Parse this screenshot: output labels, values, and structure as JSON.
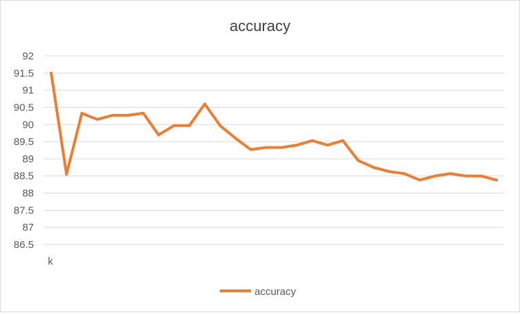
{
  "chart_data": {
    "type": "line",
    "title": "accuracy",
    "xlabel": "",
    "ylabel": "",
    "x_tick_label": "k",
    "ylim": [
      86.5,
      92
    ],
    "y_ticks": [
      "86.5",
      "87",
      "87.5",
      "88",
      "88.5",
      "89",
      "89.5",
      "90",
      "90.5",
      "91",
      "91.5",
      "92"
    ],
    "grid": true,
    "legend_position": "bottom",
    "series": [
      {
        "name": "accuracy",
        "color": "#ed7d31",
        "values": [
          91.5,
          88.55,
          90.33,
          90.15,
          90.27,
          90.27,
          90.33,
          89.7,
          89.97,
          89.97,
          90.6,
          89.97,
          89.6,
          89.27,
          89.33,
          89.33,
          89.4,
          89.53,
          89.4,
          89.53,
          88.95,
          88.75,
          88.63,
          88.57,
          88.38,
          88.5,
          88.57,
          88.5,
          88.5,
          88.38
        ]
      }
    ]
  }
}
